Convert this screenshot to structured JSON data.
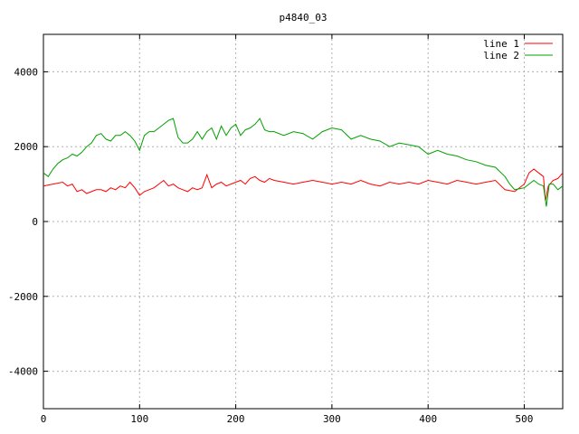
{
  "chart_data": {
    "type": "line",
    "title": "p4840_03",
    "xlabel": "",
    "ylabel": "",
    "xlim": [
      0,
      540
    ],
    "ylim": [
      -5000,
      5000
    ],
    "xticks": [
      0,
      100,
      200,
      300,
      400,
      500
    ],
    "yticks": [
      -4000,
      -2000,
      0,
      2000,
      4000
    ],
    "grid": true,
    "legend_position": "top-right",
    "series": [
      {
        "name": "line 1",
        "color": "#ff0000",
        "x": [
          0,
          10,
          20,
          25,
          30,
          35,
          40,
          45,
          50,
          55,
          60,
          65,
          70,
          75,
          80,
          85,
          90,
          95,
          100,
          105,
          110,
          115,
          120,
          125,
          130,
          135,
          140,
          145,
          150,
          155,
          160,
          165,
          170,
          175,
          180,
          185,
          190,
          195,
          200,
          205,
          210,
          215,
          220,
          225,
          230,
          235,
          240,
          250,
          260,
          270,
          280,
          290,
          300,
          310,
          320,
          330,
          340,
          350,
          360,
          370,
          380,
          390,
          400,
          410,
          420,
          430,
          440,
          450,
          460,
          470,
          480,
          490,
          500,
          505,
          510,
          515,
          520,
          522,
          525,
          530,
          535,
          540
        ],
        "y": [
          950,
          1000,
          1050,
          950,
          1000,
          800,
          850,
          750,
          800,
          850,
          850,
          800,
          900,
          850,
          950,
          900,
          1050,
          900,
          700,
          800,
          850,
          900,
          1000,
          1100,
          950,
          1000,
          900,
          850,
          800,
          900,
          850,
          900,
          1250,
          900,
          1000,
          1050,
          950,
          1000,
          1050,
          1100,
          1000,
          1150,
          1200,
          1100,
          1050,
          1150,
          1100,
          1050,
          1000,
          1050,
          1100,
          1050,
          1000,
          1050,
          1000,
          1100,
          1000,
          950,
          1050,
          1000,
          1050,
          1000,
          1100,
          1050,
          1000,
          1100,
          1050,
          1000,
          1050,
          1100,
          850,
          800,
          1000,
          1300,
          1400,
          1300,
          1200,
          550,
          950,
          1100,
          1150,
          1300
        ]
      },
      {
        "name": "line 2",
        "color": "#00a000",
        "x": [
          0,
          5,
          10,
          15,
          20,
          25,
          30,
          35,
          40,
          45,
          50,
          55,
          60,
          65,
          70,
          75,
          80,
          85,
          90,
          95,
          100,
          105,
          110,
          115,
          120,
          125,
          130,
          135,
          140,
          145,
          150,
          155,
          160,
          165,
          170,
          175,
          180,
          185,
          190,
          195,
          200,
          205,
          210,
          215,
          220,
          225,
          230,
          235,
          240,
          250,
          260,
          270,
          280,
          290,
          300,
          310,
          320,
          330,
          340,
          350,
          360,
          370,
          380,
          390,
          400,
          410,
          420,
          430,
          440,
          450,
          460,
          470,
          480,
          485,
          490,
          500,
          505,
          510,
          515,
          520,
          523,
          526,
          530,
          535,
          540
        ],
        "y": [
          1300,
          1200,
          1400,
          1550,
          1650,
          1700,
          1800,
          1750,
          1850,
          2000,
          2100,
          2300,
          2350,
          2200,
          2150,
          2300,
          2300,
          2400,
          2300,
          2150,
          1900,
          2300,
          2400,
          2400,
          2500,
          2600,
          2700,
          2750,
          2250,
          2100,
          2100,
          2200,
          2400,
          2200,
          2400,
          2500,
          2200,
          2550,
          2300,
          2500,
          2600,
          2300,
          2450,
          2500,
          2600,
          2750,
          2450,
          2400,
          2400,
          2300,
          2400,
          2350,
          2200,
          2400,
          2500,
          2450,
          2200,
          2300,
          2200,
          2150,
          2000,
          2100,
          2050,
          2000,
          1800,
          1900,
          1800,
          1750,
          1650,
          1600,
          1500,
          1450,
          1200,
          1000,
          850,
          900,
          1000,
          1100,
          1000,
          950,
          400,
          1000,
          1000,
          850,
          950
        ]
      }
    ]
  }
}
